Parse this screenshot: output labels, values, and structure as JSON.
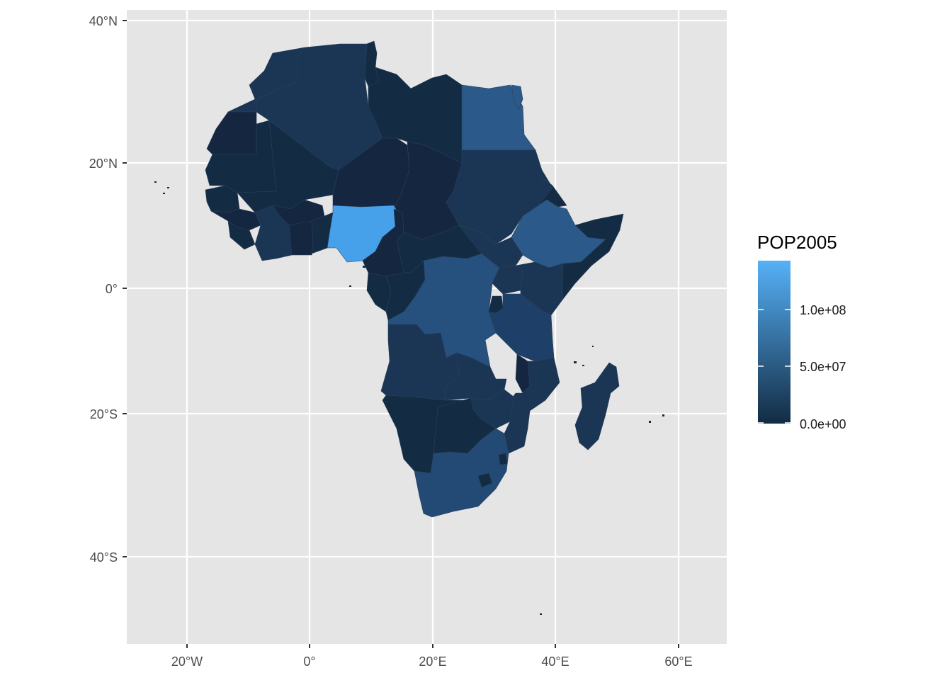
{
  "axes": {
    "x_ticks": [
      "20°W",
      "0°",
      "20°E",
      "40°E",
      "60°E"
    ],
    "y_ticks": [
      "40°N",
      "20°N",
      "0°",
      "20°S",
      "40°S"
    ]
  },
  "legend": {
    "title": "POP2005",
    "labels": [
      "1.0e+08",
      "5.0e+07",
      "0.0e+00"
    ],
    "color_low": "#132b43",
    "color_high": "#56b1f7"
  },
  "colors": {
    "panel": "#e5e5e5",
    "grid": "#ffffff",
    "ocean_outline": "#2a3f5a"
  },
  "chart_data": {
    "type": "choropleth",
    "variable": "POP2005",
    "x_range": [
      -30,
      68
    ],
    "y_range": [
      -57,
      41
    ],
    "legend_placement": "right",
    "grid": true,
    "highlighted": [
      {
        "region": "Nigeria",
        "level": "highest"
      },
      {
        "region": "Egypt",
        "level": "high"
      },
      {
        "region": "Ethiopia",
        "level": "high"
      },
      {
        "region": "DR Congo",
        "level": "medium"
      },
      {
        "region": "South Africa",
        "level": "medium"
      }
    ]
  }
}
